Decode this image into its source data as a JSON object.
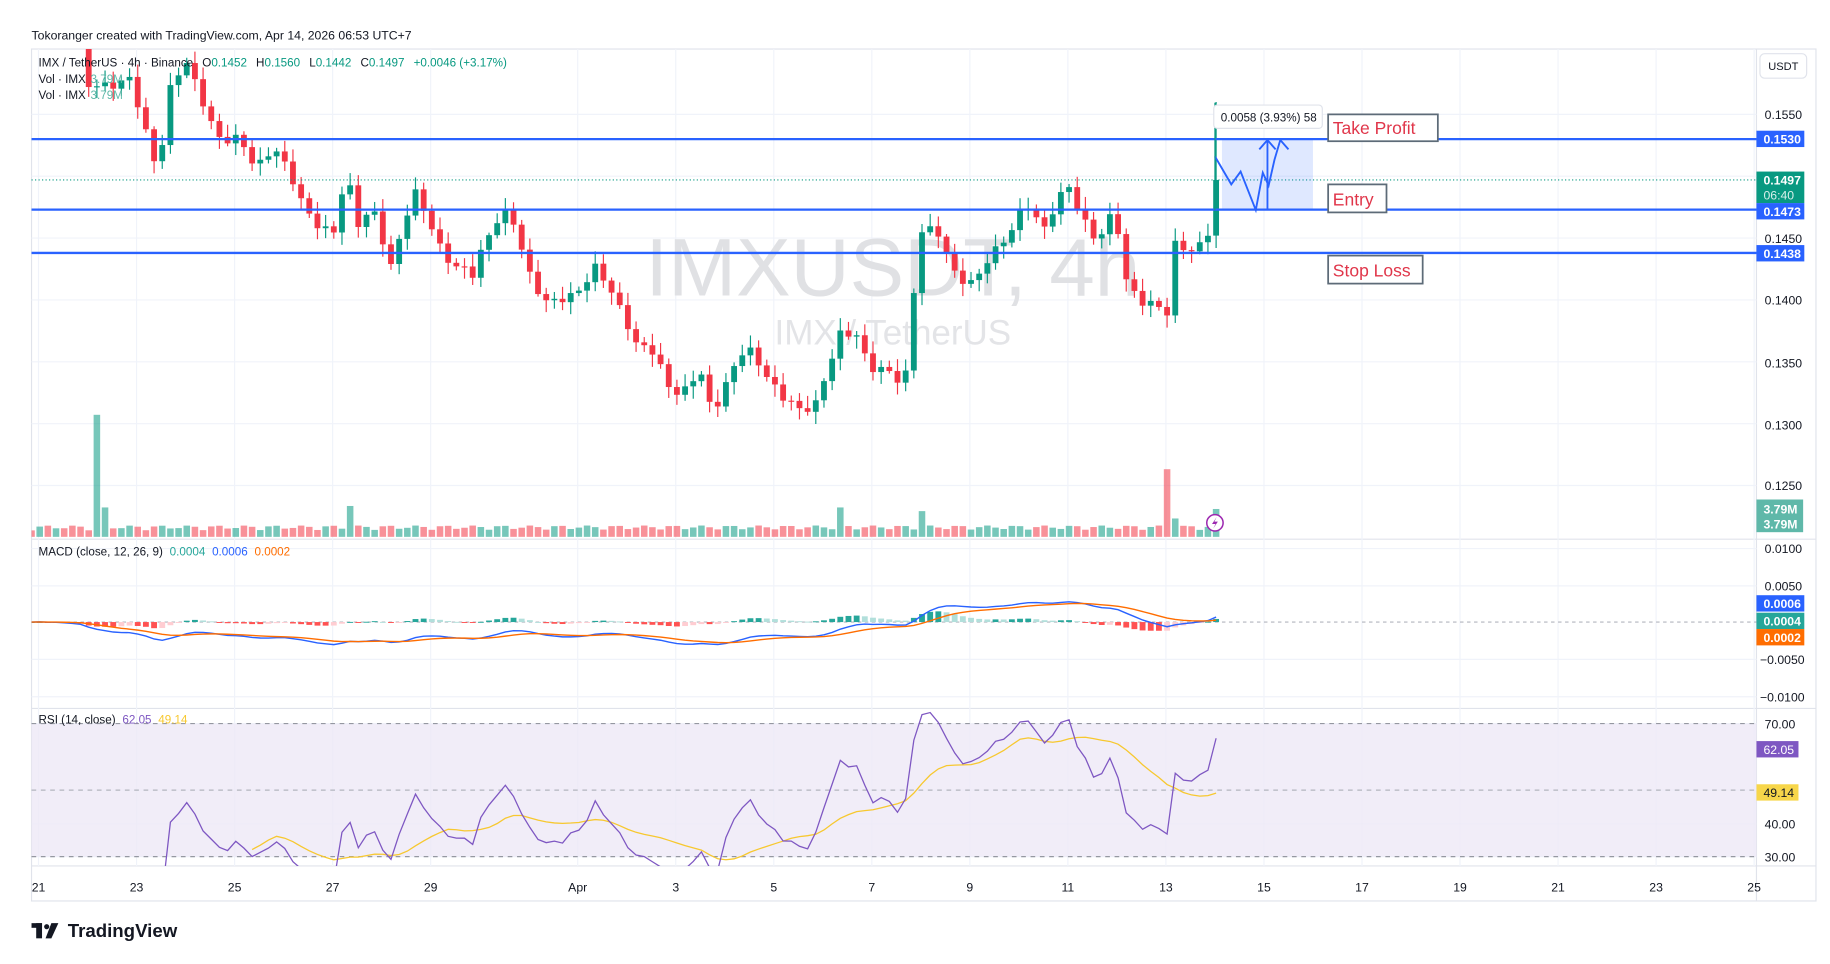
{
  "header": {
    "attribution": "Tokoranger created with TradingView.com, Apr 14, 2026 06:53 UTC+7"
  },
  "legend": {
    "symbol_line": "IMX / TetherUS · 4h · Binance",
    "o_label": "O",
    "o_value": "0.1452",
    "h_label": "H",
    "h_value": "0.1560",
    "l_label": "L",
    "l_value": "0.1442",
    "c_label": "C",
    "c_value": "0.1497",
    "change": "+0.0046 (+3.17%)",
    "vol_label_1": "Vol · IMX",
    "vol_value_1": "3.79M",
    "vol_label_2": "Vol · IMX",
    "vol_value_2": "3.79M"
  },
  "watermark": {
    "main": "IMXUSDT, 4h",
    "sub": "IMX / TetherUS"
  },
  "currency_button": "USDT",
  "price_axis": {
    "ticks": [
      "0.1550",
      "0.1450",
      "0.1400",
      "0.1350",
      "0.1300",
      "0.1250"
    ],
    "tags": {
      "take_profit": "0.1530",
      "current": "0.1497",
      "countdown": "06:40",
      "entry": "0.1473",
      "stop_loss": "0.1438",
      "volume_1": "3.79M",
      "volume_2": "3.79M"
    }
  },
  "annotations": {
    "take_profit_label": "Take Profit",
    "entry_label": "Entry",
    "stop_loss_label": "Stop Loss",
    "measure_label": "0.0058 (3.93%) 58"
  },
  "macd": {
    "title": "MACD (close, 12, 26, 9)",
    "histogram": "0.0004",
    "macd": "0.0006",
    "signal": "0.0002",
    "axis": [
      "0.0100",
      "0.0050",
      "−0.0050",
      "−0.0100"
    ]
  },
  "rsi": {
    "title": "RSI (14, close)",
    "value": "62.05",
    "sma": "49.14",
    "axis": [
      "70.00",
      "40.00",
      "30.00"
    ]
  },
  "time_axis": [
    "21",
    "23",
    "25",
    "27",
    "29",
    "Apr",
    "3",
    "5",
    "7",
    "9",
    "11",
    "13",
    "15",
    "17",
    "19",
    "21",
    "23",
    "25"
  ],
  "footer": {
    "logo_text": "TradingView"
  },
  "colors": {
    "up": "#089981",
    "down": "#f23645",
    "level": "#2962ff",
    "macd": "#2962ff",
    "signal": "#ff6d00",
    "rsi": "#7e57c2",
    "rsi_sma": "#f7c82f",
    "label_red": "#e0364a"
  },
  "chart_data": {
    "type": "candlestick",
    "title": "IMX / TetherUS · 4h · Binance",
    "interval": "4h",
    "x_unit": "days since Mar 21",
    "ylim": [
      0.1215,
      0.1603
    ],
    "last_ohlc": {
      "open": 0.1452,
      "high": 0.156,
      "low": 0.1442,
      "close": 0.1497
    },
    "levels": {
      "take_profit": 0.153,
      "entry": 0.1473,
      "stop_loss": 0.1438,
      "current": 0.1497
    },
    "close_keypoints": [
      [
        -0.15,
        0.163
      ],
      [
        0.8,
        0.162
      ],
      [
        1.0,
        0.157
      ],
      [
        1.83,
        0.158
      ],
      [
        2.19,
        0.1535
      ],
      [
        2.43,
        0.1505
      ],
      [
        2.67,
        0.157
      ],
      [
        3.02,
        0.159
      ],
      [
        3.38,
        0.156
      ],
      [
        3.74,
        0.1525
      ],
      [
        4.1,
        0.153
      ],
      [
        4.45,
        0.151
      ],
      [
        4.81,
        0.152
      ],
      [
        5.17,
        0.15
      ],
      [
        5.4,
        0.148
      ],
      [
        5.64,
        0.146
      ],
      [
        6.0,
        0.145
      ],
      [
        6.29,
        0.151
      ],
      [
        6.48,
        0.146
      ],
      [
        6.83,
        0.147
      ],
      [
        7.19,
        0.143
      ],
      [
        7.43,
        0.146
      ],
      [
        7.67,
        0.1485
      ],
      [
        8.02,
        0.146
      ],
      [
        8.26,
        0.144
      ],
      [
        8.5,
        0.1425
      ],
      [
        8.86,
        0.142
      ],
      [
        9.1,
        0.145
      ],
      [
        9.45,
        0.147
      ],
      [
        9.69,
        0.146
      ],
      [
        10.05,
        0.142
      ],
      [
        10.4,
        0.1395
      ],
      [
        10.76,
        0.14
      ],
      [
        11.0,
        0.141
      ],
      [
        11.36,
        0.1425
      ],
      [
        11.6,
        0.141
      ],
      [
        11.95,
        0.139
      ],
      [
        12.19,
        0.1365
      ],
      [
        12.55,
        0.1355
      ],
      [
        12.9,
        0.133
      ],
      [
        13.14,
        0.1325
      ],
      [
        13.5,
        0.134
      ],
      [
        13.74,
        0.131
      ],
      [
        14.1,
        0.134
      ],
      [
        14.45,
        0.136
      ],
      [
        14.81,
        0.1345
      ],
      [
        15.17,
        0.132
      ],
      [
        15.52,
        0.131
      ],
      [
        15.88,
        0.132
      ],
      [
        16.17,
        0.135
      ],
      [
        16.36,
        0.137
      ],
      [
        16.71,
        0.1375
      ],
      [
        16.95,
        0.1345
      ],
      [
        17.31,
        0.134
      ],
      [
        17.67,
        0.1335
      ],
      [
        17.83,
        0.14
      ],
      [
        18.02,
        0.1455
      ],
      [
        18.38,
        0.1452
      ],
      [
        18.74,
        0.142
      ],
      [
        19.1,
        0.141
      ],
      [
        19.45,
        0.144
      ],
      [
        19.81,
        0.1455
      ],
      [
        20.17,
        0.1475
      ],
      [
        20.52,
        0.146
      ],
      [
        20.76,
        0.148
      ],
      [
        21.0,
        0.149
      ],
      [
        21.24,
        0.147
      ],
      [
        21.6,
        0.145
      ],
      [
        21.95,
        0.147
      ],
      [
        22.19,
        0.1415
      ],
      [
        22.55,
        0.14
      ],
      [
        22.79,
        0.1395
      ],
      [
        23.02,
        0.1385
      ],
      [
        23.14,
        0.1445
      ],
      [
        23.38,
        0.1445
      ],
      [
        23.62,
        0.144
      ],
      [
        23.86,
        0.1452
      ],
      [
        24.0,
        0.1497
      ]
    ],
    "volume_unit": "M IMX",
    "volume_base": 1.1,
    "volume_spikes": [
      [
        1.2,
        16.6
      ],
      [
        1.4,
        4.0
      ],
      [
        6.3,
        4.2
      ],
      [
        16.4,
        4.0
      ],
      [
        18.0,
        3.5
      ],
      [
        23.0,
        9.2
      ],
      [
        23.2,
        2.5
      ]
    ],
    "last_volume": 3.79,
    "macd_params": [
      12,
      26,
      9
    ],
    "rsi_params": [
      14,
      14
    ]
  }
}
